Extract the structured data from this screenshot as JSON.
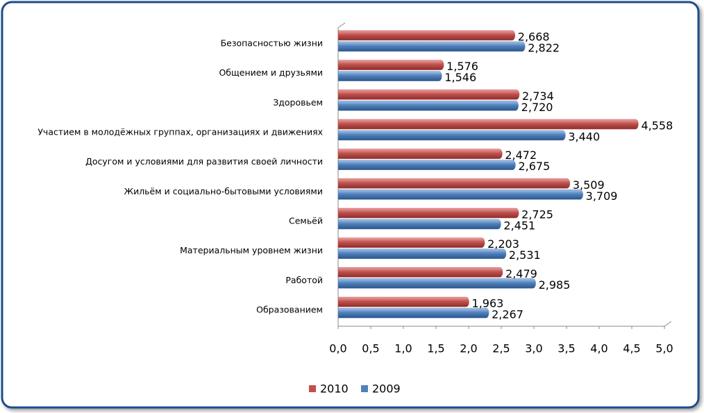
{
  "chart_data": {
    "type": "bar",
    "orientation": "horizontal",
    "categories": [
      "Безопасностью жизни",
      "Общением и друзьями",
      "Здоровьем",
      "Участием в молодёжных группах, организациях и движениях",
      "Досугом и условиями для развития своей личности",
      "Жильём и социально-бытовыми условиями",
      "Семьёй",
      "Материальным уровнем жизни",
      "Работой",
      "Образованием"
    ],
    "series": [
      {
        "name": "2010",
        "color": "#c0504d",
        "values": [
          2.668,
          1.576,
          2.734,
          4.558,
          2.472,
          3.509,
          2.725,
          2.203,
          2.479,
          1.963
        ],
        "value_labels": [
          "2,668",
          "1,576",
          "2,734",
          "4,558",
          "2,472",
          "3,509",
          "2,725",
          "2,203",
          "2,479",
          "1,963"
        ]
      },
      {
        "name": "2009",
        "color": "#4f81bd",
        "values": [
          2.822,
          1.546,
          2.72,
          3.44,
          2.675,
          3.709,
          2.451,
          2.531,
          2.985,
          2.267
        ],
        "value_labels": [
          "2,822",
          "1,546",
          "2,720",
          "3,440",
          "2,675",
          "3,709",
          "2,451",
          "2,531",
          "2,985",
          "2,267"
        ]
      }
    ],
    "xlim": [
      0,
      5
    ],
    "xticks": [
      {
        "value": 0,
        "label": "0,0"
      },
      {
        "value": 0.5,
        "label": "0,5"
      },
      {
        "value": 1,
        "label": "1,0"
      },
      {
        "value": 1.5,
        "label": "1,5"
      },
      {
        "value": 2,
        "label": "2,0"
      },
      {
        "value": 2.5,
        "label": "2,5"
      },
      {
        "value": 3,
        "label": "3,0"
      },
      {
        "value": 3.5,
        "label": "3,5"
      },
      {
        "value": 4,
        "label": "4,0"
      },
      {
        "value": 4.5,
        "label": "4,5"
      },
      {
        "value": 5,
        "label": "5,0"
      }
    ],
    "legend": "bottom"
  }
}
